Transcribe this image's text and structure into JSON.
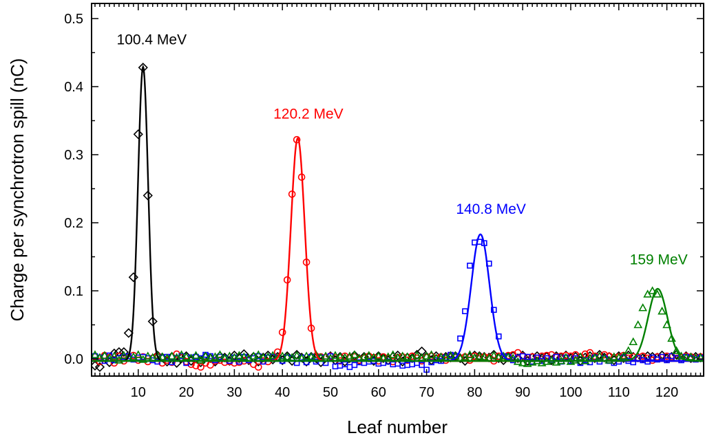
{
  "chart_data": {
    "type": "scatter",
    "xlabel": "Leaf number",
    "ylabel": "Charge per synchrotron spill (nC)",
    "xlim": [
      0,
      127.6
    ],
    "ylim": [
      -0.015,
      0.522
    ],
    "xticks": [
      10,
      20,
      30,
      40,
      50,
      60,
      70,
      80,
      90,
      100,
      110,
      120
    ],
    "yticks": [
      0.0,
      0.1,
      0.2,
      0.3,
      0.4,
      0.5
    ],
    "ytick_labels": [
      "0.0",
      "0.1",
      "0.2",
      "0.3",
      "0.4",
      "0.5"
    ],
    "grid": false,
    "x_start": 1,
    "series": [
      {
        "name": "100.4 MeV",
        "color": "#000000",
        "marker": "diamond",
        "fit": {
          "center": 11.0,
          "amplitude": 0.432,
          "sigma": 1.05,
          "offset": -0.003
        },
        "annotation": {
          "label": "100.4 MeV",
          "x": 12.8,
          "y": 0.462
        },
        "y": [
          -0.01,
          -0.012,
          0.003,
          -0.005,
          0.008,
          0.01,
          0.01,
          0.038,
          0.12,
          0.33,
          0.428,
          0.24,
          0.055,
          0.005,
          0.002,
          -0.004,
          0.003,
          -0.006,
          0.001,
          0.004,
          -0.003,
          0.002,
          -0.005,
          0.003,
          0.001,
          -0.004,
          0.004,
          0.002,
          -0.003,
          0.005,
          0.001,
          0.007,
          -0.002,
          0.003,
          -0.004,
          0.002,
          0.005,
          -0.001,
          0.003,
          -0.002,
          0.004,
          -0.003,
          0.006,
          0.002,
          -0.004,
          0.003,
          0.001,
          -0.005,
          0.002,
          0.004,
          -0.002,
          0.003,
          -0.004,
          0.001,
          0.005,
          -0.002,
          0.003,
          0.002,
          -0.003,
          0.004,
          0.001,
          -0.002,
          0.003,
          0.005,
          -0.004,
          0.002,
          0.001,
          0.006,
          0.011,
          0.003,
          -0.002,
          0.004,
          0.001,
          0.003,
          0.002,
          0.004,
          0.001,
          -0.003,
          0.002,
          0.005,
          0.004,
          0.003,
          0.002,
          0.006,
          0.001,
          -0.002,
          0.003,
          0.004,
          0.001,
          0.005,
          -0.003,
          0.002,
          0.004,
          0.001,
          0.003,
          -0.002,
          0.004,
          0.002,
          0.005,
          0.001,
          0.003,
          -0.003,
          0.002,
          0.004,
          0.001,
          0.006,
          0.002,
          0.003,
          -0.002,
          0.004,
          0.001,
          0.005,
          0.003,
          0.002,
          0.001,
          0.004,
          0.003,
          0.002,
          0.005,
          0.001,
          0.003,
          0.006,
          0.002,
          0.004,
          0.001,
          0.003,
          0.002
        ]
      },
      {
        "name": "120.2 MeV",
        "color": "#ff0000",
        "marker": "circle",
        "fit": {
          "center": 43.2,
          "amplitude": 0.327,
          "sigma": 1.45,
          "offset": -0.003
        },
        "annotation": {
          "label": "120.2 MeV",
          "x": 45.4,
          "y": 0.353
        },
        "y": [
          0.003,
          -0.004,
          0.005,
          0.002,
          -0.006,
          0.004,
          -0.003,
          0.002,
          0.005,
          -0.002,
          0.003,
          -0.004,
          0.001,
          0.004,
          -0.006,
          -0.002,
          -0.005,
          0.007,
          0.002,
          -0.004,
          -0.008,
          -0.01,
          -0.012,
          -0.006,
          -0.009,
          -0.003,
          -0.002,
          -0.005,
          -0.004,
          -0.006,
          -0.005,
          -0.003,
          -0.002,
          -0.008,
          -0.012,
          -0.003,
          -0.004,
          0.002,
          0.01,
          0.039,
          0.116,
          0.242,
          0.322,
          0.267,
          0.142,
          0.045,
          0.004,
          0.003,
          0.002,
          0.004,
          0.002,
          -0.003,
          0.004,
          0.002,
          0.003,
          -0.002,
          0.001,
          0.004,
          0.002,
          -0.003,
          0.003,
          0.001,
          -0.004,
          0.002,
          0.003,
          -0.002,
          0.004,
          0.001,
          -0.003,
          0.002,
          0.004,
          0.001,
          0.003,
          -0.002,
          0.005,
          0.002,
          0.001,
          0.003,
          -0.002,
          0.004,
          0.001,
          0.003,
          0.002,
          -0.003,
          0.004,
          0.002,
          0.005,
          0.006,
          0.009,
          0.004,
          0.002,
          0.003,
          0.001,
          0.004,
          0.005,
          0.006,
          0.003,
          0.004,
          0.005,
          0.004,
          0.006,
          0.003,
          0.007,
          0.009,
          0.004,
          0.003,
          0.006,
          0.004,
          0.002,
          0.003,
          0.005,
          0.001,
          0.003,
          0.002,
          0.004,
          0.001,
          -0.002,
          0.003,
          0.002,
          0.004,
          0.003,
          0.001,
          0.002,
          0.004,
          0.003,
          0.001,
          0.003
        ]
      },
      {
        "name": "140.8 MeV",
        "color": "#0000ff",
        "marker": "square",
        "fit": {
          "center": 81.2,
          "amplitude": 0.186,
          "sigma": 1.9,
          "offset": -0.003
        },
        "annotation": {
          "label": "140.8 MeV",
          "x": 83.4,
          "y": 0.213
        },
        "y": [
          0.004,
          0.002,
          -0.003,
          0.005,
          -0.002,
          0.001,
          0.003,
          0.004,
          -0.001,
          0.002,
          0.003,
          0.001,
          -0.002,
          -0.004,
          0.002,
          0.003,
          -0.005,
          0.001,
          0.004,
          -0.006,
          0.002,
          0.003,
          0.001,
          0.006,
          0.004,
          -0.002,
          0.003,
          0.001,
          -0.003,
          0.002,
          -0.004,
          0.003,
          -0.002,
          0.001,
          0.004,
          -0.004,
          0.002,
          0.003,
          0.001,
          -0.003,
          0.002,
          0.001,
          -0.006,
          0.002,
          -0.005,
          0.003,
          -0.004,
          0.002,
          -0.006,
          0.004,
          -0.011,
          -0.01,
          -0.008,
          -0.012,
          -0.009,
          -0.005,
          -0.006,
          -0.004,
          -0.003,
          -0.007,
          -0.006,
          -0.004,
          -0.008,
          -0.007,
          -0.01,
          -0.009,
          -0.008,
          -0.006,
          -0.009,
          -0.016,
          -0.005,
          -0.002,
          -0.003,
          0.002,
          0.006,
          0.004,
          0.03,
          0.07,
          0.137,
          0.171,
          0.172,
          0.17,
          0.14,
          0.072,
          0.033,
          0.004,
          0.003,
          -0.002,
          0.002,
          0.004,
          0.003,
          -0.004,
          0.002,
          -0.003,
          0.001,
          -0.002,
          0.003,
          -0.004,
          0.002,
          -0.003,
          0.001,
          -0.006,
          -0.002,
          -0.005,
          0.002,
          -0.004,
          0.001,
          -0.003,
          -0.006,
          -0.004,
          0.002,
          -0.003,
          -0.005,
          0.001,
          -0.002,
          -0.004,
          0.002,
          -0.001,
          0.003,
          -0.002,
          0.004,
          0.001,
          -0.002,
          0.003,
          0.001,
          -0.001,
          0.002
        ]
      },
      {
        "name": "159 MeV",
        "color": "#008000",
        "marker": "triangle",
        "fit": {
          "center": 118.1,
          "amplitude": 0.106,
          "sigma": 2.0,
          "offset": -0.003
        },
        "annotation": {
          "label": "159 MeV",
          "x": 118.3,
          "y": 0.139
        },
        "y": [
          0.006,
          0.002,
          0.005,
          0.001,
          0.004,
          -0.002,
          0.005,
          0.002,
          0.003,
          0.006,
          -0.001,
          0.004,
          0.002,
          0.005,
          0.003,
          0.001,
          0.004,
          0.002,
          0.006,
          0.003,
          0.001,
          0.005,
          -0.002,
          0.004,
          0.002,
          0.003,
          0.006,
          0.001,
          0.004,
          0.002,
          0.005,
          0.003,
          0.001,
          0.004,
          0.006,
          0.002,
          0.003,
          0.005,
          0.001,
          0.004,
          0.003,
          0.002,
          0.005,
          0.001,
          0.004,
          0.003,
          0.006,
          0.002,
          0.004,
          0.001,
          0.005,
          0.003,
          0.002,
          0.004,
          0.006,
          0.001,
          0.003,
          0.005,
          0.002,
          0.004,
          0.001,
          0.003,
          0.006,
          0.002,
          0.004,
          0.003,
          0.001,
          0.005,
          0.002,
          0.004,
          0.006,
          0.001,
          0.003,
          0.002,
          0.005,
          0.004,
          0.001,
          0.003,
          0.006,
          0.002,
          0.004,
          0.003,
          0.001,
          0.005,
          0.002,
          0.004,
          0.003,
          0.001,
          -0.004,
          -0.006,
          -0.007,
          -0.005,
          -0.003,
          -0.006,
          -0.004,
          -0.002,
          -0.005,
          -0.003,
          0.002,
          -0.004,
          -0.002,
          0.003,
          -0.003,
          0.001,
          0.002,
          0.004,
          0.001,
          -0.002,
          0.003,
          0.002,
          0.004,
          0.012,
          0.025,
          0.05,
          0.075,
          0.095,
          0.1,
          0.095,
          0.07,
          0.05,
          0.03,
          0.012,
          0.004,
          0.002,
          0.003,
          0.001,
          0.002
        ]
      }
    ]
  }
}
